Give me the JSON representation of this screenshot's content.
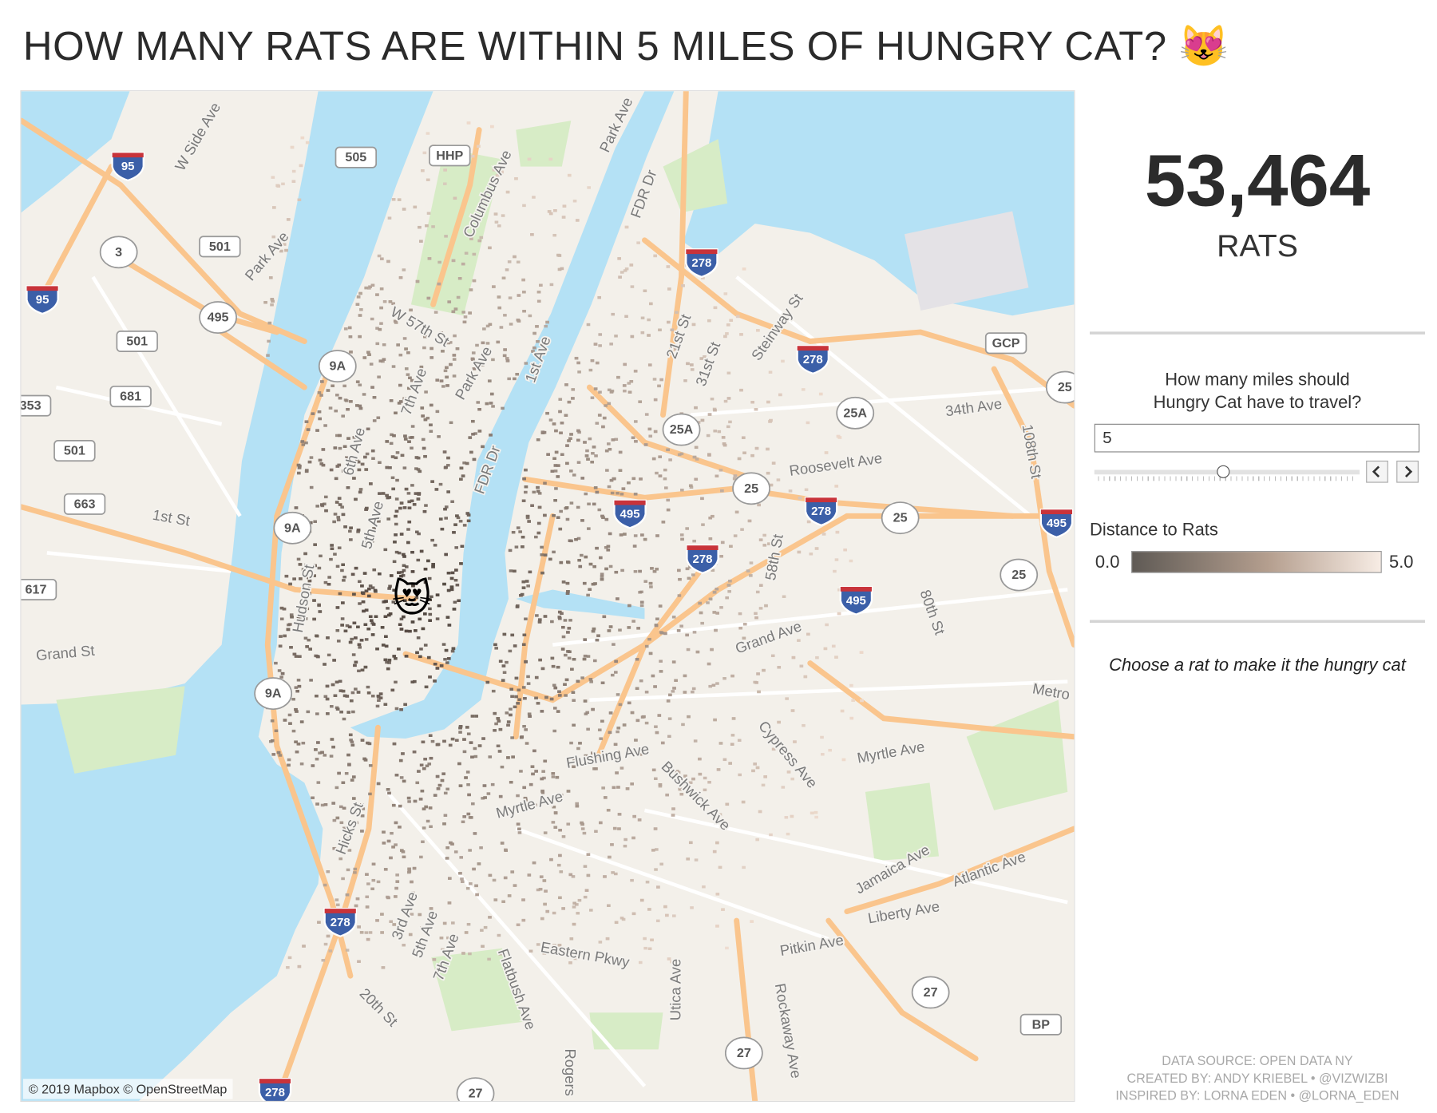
{
  "header": {
    "title": "HOW MANY RATS ARE WITHIN 5 MILES OF HUNGRY CAT? 😻"
  },
  "map": {
    "marker": "😻",
    "attribution": "© 2019 Mapbox © OpenStreetMap",
    "street_labels": [
      "W Side Ave",
      "Park Ave",
      "1st St",
      "Grand St",
      "Columbus Ave",
      "Park Ave",
      "FDR Dr",
      "W 57th St",
      "7th Ave",
      "Park Ave",
      "1st Ave",
      "FDR Dr",
      "21st St",
      "31st St",
      "Steinway St",
      "34th Ave",
      "108th St",
      "Roosevelt Ave",
      "58th St",
      "80th St",
      "Grand Ave",
      "Metro",
      "Myrtle Ave",
      "Flushing Ave",
      "Cypress Ave",
      "Bushwick Ave",
      "Myrtle Ave",
      "Jamaica Ave",
      "Atlantic Ave",
      "Liberty Ave",
      "Pitkin Ave",
      "Eastern Pkwy",
      "Flatbush Ave",
      "Utica Ave",
      "Rockaway Ave",
      "Rogers",
      "20th St",
      "3rd Ave",
      "5th Ave",
      "7th Ave",
      "Hicks St",
      "Hudson St",
      "5th Ave",
      "6th Ave"
    ],
    "route_shields": [
      "95",
      "95",
      "505",
      "HHP",
      "501",
      "3",
      "495",
      "501",
      "681",
      "353",
      "501",
      "663",
      "617",
      "9A",
      "9A",
      "9A",
      "278",
      "278",
      "GCP",
      "25",
      "25A",
      "25A",
      "25",
      "278",
      "25",
      "495",
      "495",
      "278",
      "495",
      "25",
      "278",
      "278",
      "27",
      "27",
      "27",
      "BP"
    ]
  },
  "panel": {
    "count": "53,464",
    "count_unit": "RATS",
    "question": [
      "How many miles should",
      "Hungry Cat have to travel?"
    ],
    "miles_input": "5",
    "legend_title": "Distance to Rats",
    "legend_min": "0.0",
    "legend_max": "5.0",
    "instruction": "Choose a rat to make it the hungry cat",
    "footer": [
      "DATA SOURCE: OPEN DATA NY",
      "CREATED BY: ANDY KRIEBEL • @VIZWIZBI",
      "INSPIRED BY: LORNA EDEN • @LORNA_EDEN"
    ]
  }
}
